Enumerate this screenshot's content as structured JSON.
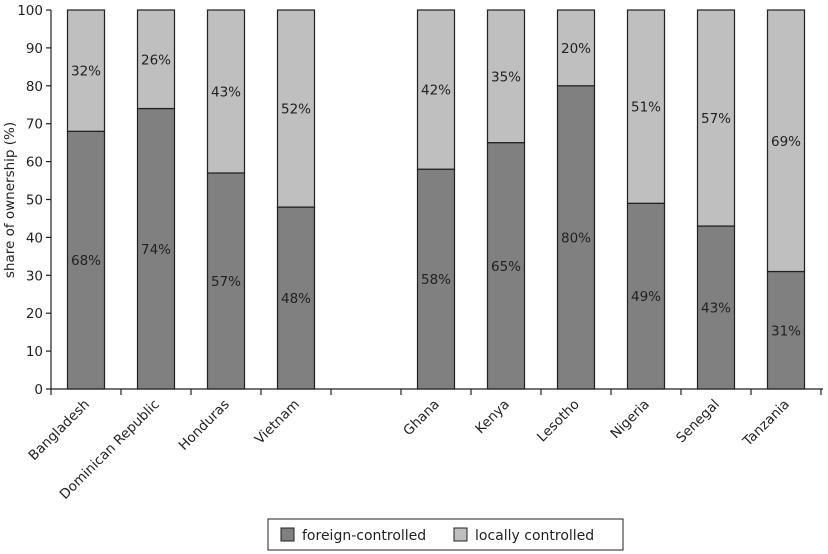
{
  "chart_data": {
    "type": "bar",
    "stacked": true,
    "title": "",
    "xlabel": "",
    "ylabel": "share of ownership (%)",
    "ylim": [
      0,
      100
    ],
    "yticks": [
      0,
      10,
      20,
      30,
      40,
      50,
      60,
      70,
      80,
      90,
      100
    ],
    "grid": false,
    "legend_position": "bottom-center",
    "groups": [
      [
        "Bangladesh",
        "Dominican Republic",
        "Honduras",
        "Vietnam"
      ],
      [
        "Ghana",
        "Kenya",
        "Lesotho",
        "Nigeria",
        "Senegal",
        "Tanzania"
      ]
    ],
    "categories": [
      "Bangladesh",
      "Dominican Republic",
      "Honduras",
      "Vietnam",
      "Ghana",
      "Kenya",
      "Lesotho",
      "Nigeria",
      "Senegal",
      "Tanzania"
    ],
    "series": [
      {
        "name": "foreign-controlled",
        "color": "#808080",
        "values": [
          68,
          74,
          57,
          48,
          58,
          65,
          80,
          49,
          43,
          31
        ],
        "labels": [
          "68%",
          "74%",
          "57%",
          "48%",
          "58%",
          "65%",
          "80%",
          "49%",
          "43%",
          "31%"
        ]
      },
      {
        "name": "locally controlled",
        "color": "#bfbfbf",
        "values": [
          32,
          26,
          43,
          52,
          42,
          35,
          20,
          51,
          57,
          69
        ],
        "labels": [
          "32%",
          "26%",
          "43%",
          "52%",
          "42%",
          "35%",
          "20%",
          "51%",
          "57%",
          "69%"
        ]
      }
    ]
  }
}
